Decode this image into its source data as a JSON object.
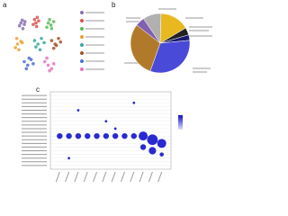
{
  "panels": [
    {
      "label": "a"
    },
    {
      "label": "b"
    },
    {
      "label": "c"
    }
  ],
  "chart_data": [
    {
      "type": "scatter",
      "xlim": [
        -50,
        50
      ],
      "ylim": [
        -50,
        50
      ],
      "series": [
        {
          "color": "#8a6fb3",
          "x": [
            -30,
            -28,
            -25,
            -32,
            -27,
            -24
          ],
          "y": [
            30,
            34,
            28,
            26,
            22,
            32
          ]
        },
        {
          "color": "#d9534f",
          "x": [
            -10,
            -6,
            -8,
            -4,
            -12,
            -7
          ],
          "y": [
            35,
            38,
            30,
            33,
            28,
            25
          ]
        },
        {
          "color": "#5cb85c",
          "x": [
            10,
            14,
            12,
            18,
            8,
            15
          ],
          "y": [
            30,
            27,
            35,
            32,
            24,
            22
          ]
        },
        {
          "color": "#f0a030",
          "x": [
            -35,
            -30,
            -38,
            -33,
            -28,
            -36
          ],
          "y": [
            0,
            4,
            -5,
            -8,
            2,
            8
          ]
        },
        {
          "color": "#3aa7a0",
          "x": [
            -10,
            -5,
            0,
            -8,
            -2,
            4
          ],
          "y": [
            5,
            0,
            8,
            -4,
            -8,
            2
          ]
        },
        {
          "color": "#a0522d",
          "x": [
            15,
            20,
            25,
            18,
            22,
            28
          ],
          "y": [
            5,
            0,
            8,
            -6,
            -2,
            3
          ]
        },
        {
          "color": "#4a6fd0",
          "x": [
            -25,
            -20,
            -15,
            -22,
            -18,
            -12
          ],
          "y": [
            -25,
            -30,
            -22,
            -35,
            -20,
            -28
          ]
        },
        {
          "color": "#e377c2",
          "x": [
            5,
            10,
            15,
            8,
            12,
            18
          ],
          "y": [
            -25,
            -30,
            -35,
            -20,
            -38,
            -28
          ]
        }
      ]
    },
    {
      "type": "pie",
      "values": [
        10,
        16,
        4,
        3,
        32,
        30,
        5
      ],
      "colors": [
        "#b0b0b0",
        "#e8b820",
        "#222222",
        "#1a1a6e",
        "#4a4ad8",
        "#b07a2a",
        "#8060b0"
      ]
    },
    {
      "type": "dot",
      "xlim": [
        0,
        13
      ],
      "ylim": [
        21,
        0
      ],
      "color": "#2a2ad0",
      "x": [
        1,
        2,
        3,
        4,
        5,
        6,
        7,
        8,
        9,
        10,
        11,
        12,
        10,
        11,
        3,
        6,
        9,
        2,
        7,
        12
      ],
      "y": [
        12,
        12,
        12,
        12,
        12,
        12,
        12,
        12,
        12,
        12,
        13,
        14,
        15,
        16,
        5,
        8,
        3,
        18,
        10,
        17
      ],
      "sizes": [
        3,
        3,
        3,
        3,
        3,
        3,
        3,
        3,
        3,
        5,
        6,
        5,
        3,
        4,
        1,
        1,
        1,
        1,
        1,
        2
      ]
    }
  ]
}
